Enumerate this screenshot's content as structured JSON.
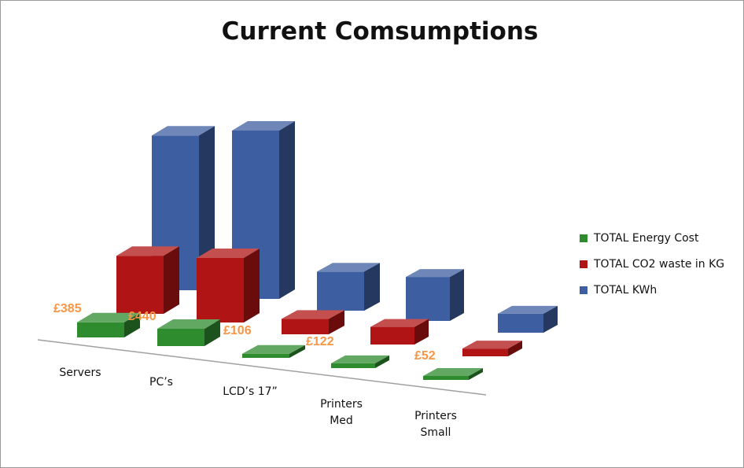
{
  "chart_data": {
    "type": "bar",
    "title": "Current Comsumptions",
    "categories": [
      [
        "Servers"
      ],
      [
        "PC’s"
      ],
      [
        "LCD’s 17”"
      ],
      [
        "Printers",
        "Med"
      ],
      [
        "Printers",
        "Small"
      ]
    ],
    "series": [
      {
        "name": "TOTAL Energy Cost",
        "color": "#2e8b2e",
        "values": [
          385,
          440,
          106,
          122,
          52
        ],
        "labels": [
          "£385",
          "£440",
          "£106",
          "£122",
          "£52"
        ]
      },
      {
        "name": "TOTAL CO2 waste in KG",
        "color": "#b01414",
        "values": [
          1350,
          1500,
          360,
          410,
          180
        ]
      },
      {
        "name": "TOTAL KWh",
        "color": "#3d5ea0",
        "values": [
          2850,
          3100,
          720,
          810,
          350
        ]
      }
    ],
    "legend_position": "right",
    "grid": false
  }
}
